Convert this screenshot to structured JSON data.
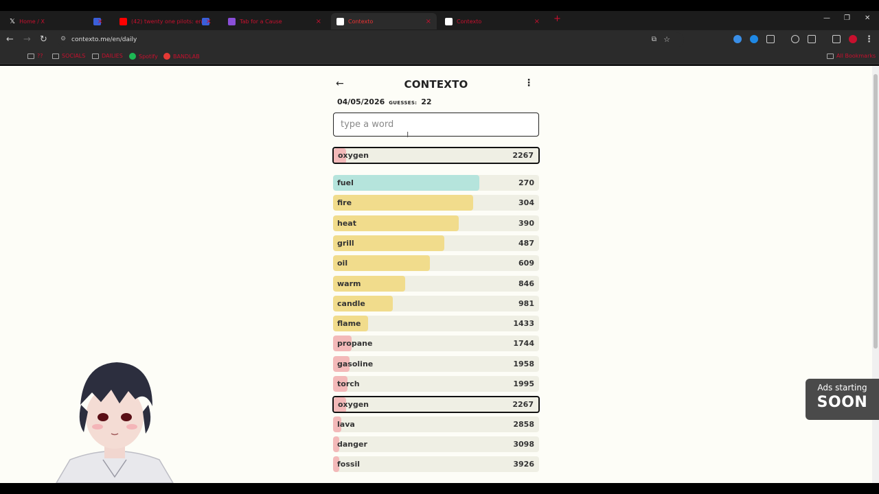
{
  "browser": {
    "tabs": [
      {
        "label": "Home / X",
        "favicon_color": "#ffffff"
      },
      {
        "label": "",
        "favicon_color": "#3a5fd9"
      },
      {
        "label": "(42) twenty one pilots: ena...",
        "favicon_color": "#ff0000"
      },
      {
        "label": "",
        "favicon_color": "#3a5fd9"
      },
      {
        "label": "Tab for a Cause",
        "favicon_color": "#8a4fd8"
      },
      {
        "label": "Contexto",
        "favicon_color": "#ffffff"
      },
      {
        "label": "Contexto",
        "favicon_color": "#ffffff"
      }
    ],
    "url": "contexto.me/en/daily",
    "bookmarks": [
      {
        "label": "??",
        "type": "folder"
      },
      {
        "label": "SOCIALS",
        "type": "folder"
      },
      {
        "label": "DAILIES",
        "type": "folder"
      },
      {
        "label": "Spotify",
        "type": "spotify"
      },
      {
        "label": "BANDLAB",
        "type": "bandlab"
      }
    ],
    "all_bookmarks": "All Bookmarks"
  },
  "game": {
    "title": "CONTEXTO",
    "date": "04/05/2026",
    "guesses_label": "GUESSES:",
    "guesses": "22",
    "input_placeholder": "type a word",
    "last_guess": {
      "word": "oxygen",
      "rank": "2267"
    },
    "guesses_list": [
      {
        "word": "fuel",
        "rank": "270",
        "fill": 0.71,
        "color": "#b5e4dc"
      },
      {
        "word": "fire",
        "rank": "304",
        "fill": 0.68,
        "color": "#f1dc8c"
      },
      {
        "word": "heat",
        "rank": "390",
        "fill": 0.61,
        "color": "#f1dc8c"
      },
      {
        "word": "grill",
        "rank": "487",
        "fill": 0.54,
        "color": "#f1dc8c"
      },
      {
        "word": "oil",
        "rank": "609",
        "fill": 0.47,
        "color": "#f1dc8c"
      },
      {
        "word": "warm",
        "rank": "846",
        "fill": 0.35,
        "color": "#f1dc8c"
      },
      {
        "word": "candle",
        "rank": "981",
        "fill": 0.29,
        "color": "#f1dc8c"
      },
      {
        "word": "flame",
        "rank": "1433",
        "fill": 0.17,
        "color": "#f1dc8c"
      },
      {
        "word": "propane",
        "rank": "1744",
        "fill": 0.09,
        "color": "#f3b9b9"
      },
      {
        "word": "gasoline",
        "rank": "1958",
        "fill": 0.08,
        "color": "#f3b9b9"
      },
      {
        "word": "torch",
        "rank": "1995",
        "fill": 0.07,
        "color": "#f3b9b9"
      },
      {
        "word": "oxygen",
        "rank": "2267",
        "fill": 0.06,
        "color": "#f3b9b9",
        "highlight": true
      },
      {
        "word": "lava",
        "rank": "2858",
        "fill": 0.04,
        "color": "#f3b9b9"
      },
      {
        "word": "danger",
        "rank": "3098",
        "fill": 0.03,
        "color": "#f3b9b9"
      },
      {
        "word": "fossil",
        "rank": "3926",
        "fill": 0.03,
        "color": "#f3b9b9"
      }
    ]
  },
  "overlay": {
    "ads_line1": "Ads starting",
    "ads_line2": "SOON"
  }
}
